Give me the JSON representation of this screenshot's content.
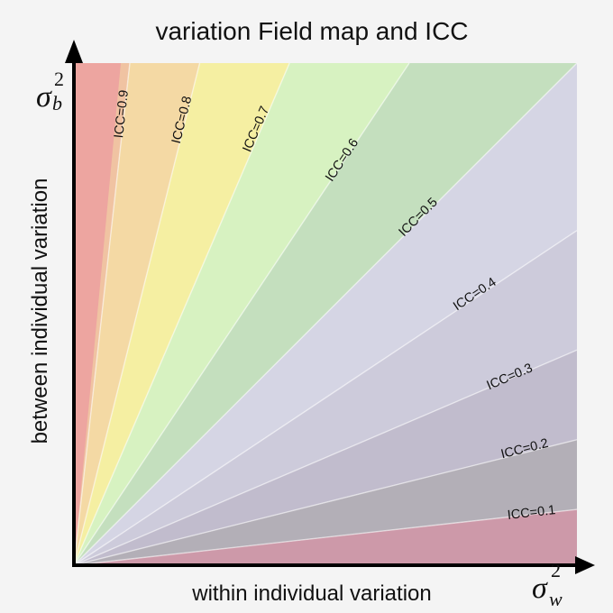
{
  "chart_data": {
    "type": "area",
    "title": "variation Field map and ICC",
    "xlabel": "within individual variation",
    "ylabel": "between individual variation",
    "x_symbol": {
      "base": "σ",
      "sub": "w",
      "sup": "2"
    },
    "y_symbol": {
      "base": "σ",
      "sub": "b",
      "sup": "2"
    },
    "xlim": [
      0,
      1
    ],
    "ylim": [
      0,
      1
    ],
    "grid": false,
    "legend": "none",
    "boundaries": [
      {
        "icc": 0.1,
        "label": "ICC=0.1"
      },
      {
        "icc": 0.2,
        "label": "ICC=0.2"
      },
      {
        "icc": 0.3,
        "label": "ICC=0.3"
      },
      {
        "icc": 0.4,
        "label": "ICC=0.4"
      },
      {
        "icc": 0.5,
        "label": "ICC=0.5"
      },
      {
        "icc": 0.6,
        "label": "ICC=0.6"
      },
      {
        "icc": 0.7,
        "label": "ICC=0.7"
      },
      {
        "icc": 0.8,
        "label": "ICC=0.8"
      },
      {
        "icc": 0.9,
        "label": "ICC=0.9"
      }
    ],
    "regions": [
      {
        "icc_range": [
          0.0,
          0.1
        ],
        "color": "#cd99a9"
      },
      {
        "icc_range": [
          0.1,
          0.2
        ],
        "color": "#b3afb7"
      },
      {
        "icc_range": [
          0.2,
          0.3
        ],
        "color": "#c1bccd"
      },
      {
        "icc_range": [
          0.3,
          0.4
        ],
        "color": "#cdcbdb"
      },
      {
        "icc_range": [
          0.4,
          0.5
        ],
        "color": "#d5d5e4"
      },
      {
        "icc_range": [
          0.5,
          0.6
        ],
        "color": "#c4dfbe"
      },
      {
        "icc_range": [
          0.6,
          0.7
        ],
        "color": "#d7f2c1"
      },
      {
        "icc_range": [
          0.7,
          0.8
        ],
        "color": "#f5efa2"
      },
      {
        "icc_range": [
          0.8,
          0.9
        ],
        "color": "#f4d9a4"
      },
      {
        "icc_range": [
          0.9,
          1.0
        ],
        "color": "#f0c3a2"
      },
      {
        "icc_range": [
          0.9,
          1.0
        ],
        "color": "#eda5a0",
        "note": ""
      }
    ]
  }
}
